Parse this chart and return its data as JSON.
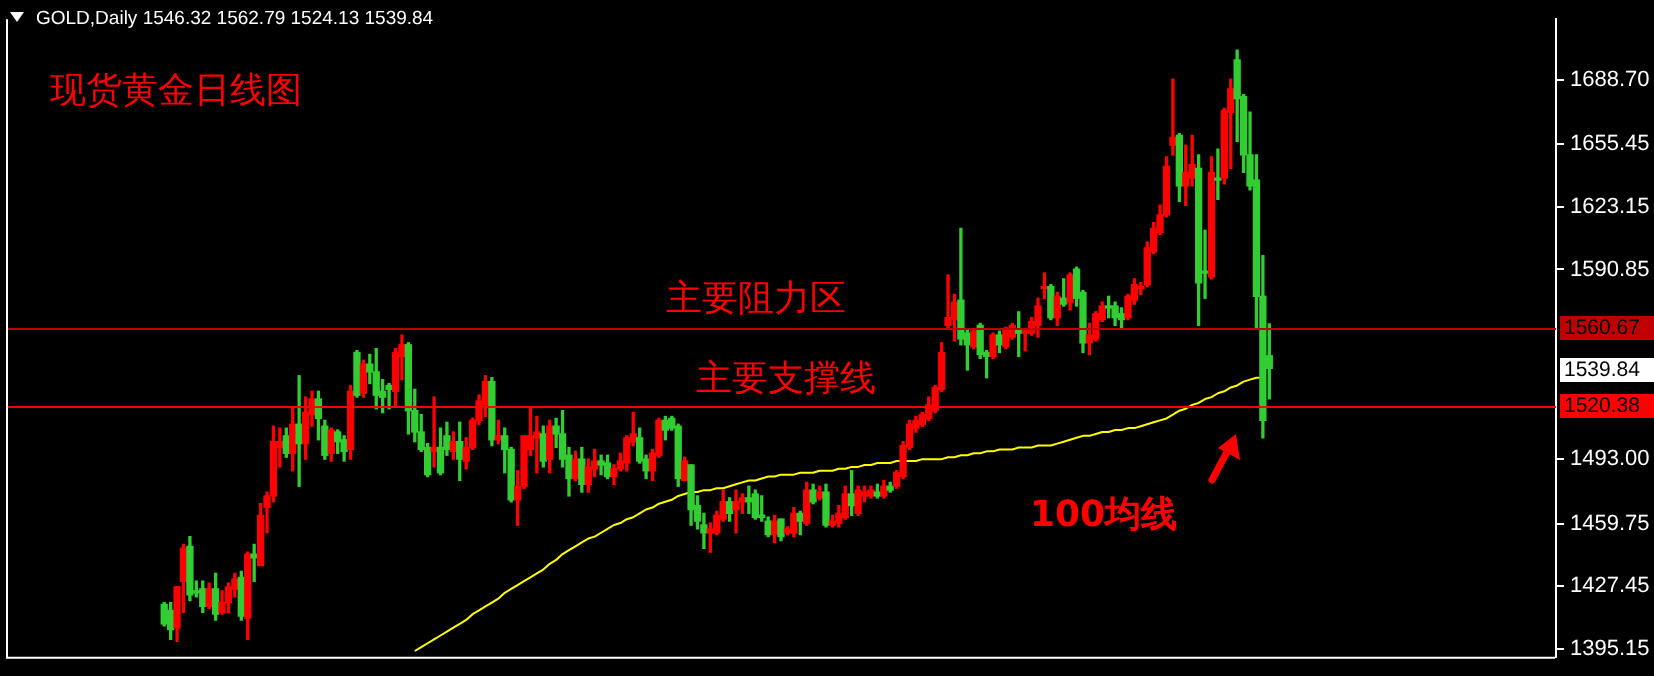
{
  "chart_data": {
    "type": "candlestick",
    "title": "现货黄金日线图",
    "categories": [
      null,
      null,
      null,
      null,
      null,
      null,
      null,
      null,
      null,
      null,
      null,
      null,
      null,
      null,
      null,
      null,
      null,
      null,
      null,
      null,
      null,
      null,
      null,
      null,
      null,
      null,
      null,
      null,
      null,
      null,
      null,
      null,
      null,
      null,
      null,
      null,
      null,
      null,
      null,
      null,
      null,
      null,
      null,
      null,
      null,
      null,
      null,
      null,
      null,
      null,
      null,
      null,
      null,
      null,
      null,
      null,
      null,
      null,
      null,
      null,
      null,
      null,
      null,
      null,
      null,
      null,
      null,
      null,
      null,
      null,
      null,
      null,
      null,
      null,
      null,
      null,
      null,
      null,
      null,
      null,
      null,
      null,
      null,
      null,
      null,
      null,
      null,
      null,
      null,
      null,
      null,
      null,
      null,
      null,
      null,
      null,
      null,
      null,
      null,
      null,
      null,
      null,
      null,
      null,
      null,
      null,
      null,
      null,
      null,
      null,
      null,
      null,
      null,
      null,
      null,
      null,
      null,
      null,
      null,
      null,
      null,
      null,
      null,
      null,
      null,
      null,
      null,
      null,
      null,
      null,
      null,
      null,
      null,
      null,
      null,
      null,
      null,
      null,
      null,
      null,
      null,
      null,
      null,
      null,
      null,
      null,
      null,
      null,
      null,
      null,
      null,
      null,
      null,
      null,
      null,
      null,
      null,
      null,
      null,
      null,
      null,
      null,
      null,
      null,
      null,
      null,
      null,
      null,
      null,
      null,
      null,
      null,
      null
    ],
    "ohlc": [
      [
        1418,
        1419,
        1407,
        1408
      ],
      [
        1415,
        1419,
        1400,
        1405
      ],
      [
        1406,
        1427,
        1399,
        1427
      ],
      [
        1430,
        1449,
        1414,
        1447
      ],
      [
        1448,
        1453,
        1420,
        1423
      ],
      [
        1425,
        1430,
        1422,
        1424
      ],
      [
        1426,
        1430,
        1414,
        1417
      ],
      [
        1417,
        1429,
        1416,
        1426
      ],
      [
        1426,
        1434,
        1410,
        1413
      ],
      [
        1414,
        1425,
        1413,
        1419
      ],
      [
        1419,
        1429,
        1414,
        1427
      ],
      [
        1426,
        1434,
        1422,
        1431
      ],
      [
        1432,
        1435,
        1410,
        1412
      ],
      [
        1411,
        1445,
        1400,
        1444
      ],
      [
        1444,
        1449,
        1430,
        1442
      ],
      [
        1438,
        1470,
        1438,
        1464
      ],
      [
        1468,
        1476,
        1455,
        1474
      ],
      [
        1474,
        1510,
        1471,
        1502
      ],
      [
        1499,
        1509,
        1489,
        1502
      ],
      [
        1505,
        1509,
        1494,
        1496
      ],
      [
        1496,
        1519,
        1487,
        1511
      ],
      [
        1511,
        1536,
        1479,
        1501
      ],
      [
        1501,
        1525,
        1493,
        1517
      ],
      [
        1516,
        1528,
        1510,
        1524
      ],
      [
        1524,
        1528,
        1503,
        1514
      ],
      [
        1510,
        1513,
        1493,
        1495
      ],
      [
        1496,
        1509,
        1492,
        1508
      ],
      [
        1507,
        1508,
        1496,
        1502
      ],
      [
        1503,
        1505,
        1492,
        1497
      ],
      [
        1498,
        1531,
        1493,
        1528
      ],
      [
        1548,
        1549,
        1525,
        1526
      ],
      [
        1527,
        1544,
        1525,
        1542
      ],
      [
        1542,
        1547,
        1532,
        1538
      ],
      [
        1538,
        1550,
        1519,
        1526
      ],
      [
        1528,
        1534,
        1517,
        1525
      ],
      [
        1531,
        1532,
        1519,
        1529
      ],
      [
        1528,
        1550,
        1520,
        1548
      ],
      [
        1546,
        1557,
        1534,
        1552
      ],
      [
        1552,
        1553,
        1506,
        1518
      ],
      [
        1518,
        1529,
        1502,
        1507
      ],
      [
        1507,
        1516,
        1497,
        1498
      ],
      [
        1499,
        1501,
        1484,
        1485
      ],
      [
        1497,
        1525,
        1489,
        1499
      ],
      [
        1499,
        1509,
        1485,
        1486
      ],
      [
        1505,
        1512,
        1495,
        1498
      ],
      [
        1497,
        1507,
        1493,
        1502
      ],
      [
        1502,
        1512,
        1482,
        1493
      ],
      [
        1492,
        1504,
        1488,
        1499
      ],
      [
        1499,
        1514,
        1498,
        1513
      ],
      [
        1513,
        1526,
        1511,
        1523
      ],
      [
        1521,
        1536,
        1515,
        1533
      ],
      [
        1533,
        1535,
        1500,
        1503
      ],
      [
        1503,
        1513,
        1501,
        1505
      ],
      [
        1505,
        1509,
        1486,
        1498
      ],
      [
        1498,
        1499,
        1471,
        1472
      ],
      [
        1472,
        1487,
        1459,
        1479
      ],
      [
        1479,
        1505,
        1478,
        1505
      ],
      [
        1498,
        1520,
        1495,
        1505
      ],
      [
        1504,
        1515,
        1486,
        1507
      ],
      [
        1506,
        1510,
        1489,
        1492
      ],
      [
        1493,
        1513,
        1486,
        1510
      ],
      [
        1510,
        1514,
        1499,
        1506
      ],
      [
        1506,
        1518,
        1489,
        1493
      ],
      [
        1495,
        1499,
        1474,
        1483
      ],
      [
        1483,
        1497,
        1482,
        1493
      ],
      [
        1493,
        1499,
        1476,
        1480
      ],
      [
        1480,
        1493,
        1476,
        1489
      ],
      [
        1488,
        1498,
        1484,
        1492
      ],
      [
        1492,
        1495,
        1485,
        1490
      ],
      [
        1491,
        1495,
        1483,
        1484
      ],
      [
        1484,
        1490,
        1480,
        1488
      ],
      [
        1488,
        1496,
        1487,
        1492
      ],
      [
        1491,
        1505,
        1487,
        1504
      ],
      [
        1502,
        1517,
        1500,
        1506
      ],
      [
        1504,
        1509,
        1491,
        1492
      ],
      [
        1493,
        1495,
        1483,
        1487
      ],
      [
        1487,
        1498,
        1482,
        1496
      ],
      [
        1495,
        1514,
        1494,
        1513
      ],
      [
        1513,
        1515,
        1503,
        1508
      ],
      [
        1514,
        1515,
        1508,
        1509
      ],
      [
        1510,
        1511,
        1479,
        1483
      ],
      [
        1482,
        1494,
        1482,
        1492
      ],
      [
        1490,
        1490,
        1459,
        1467
      ],
      [
        1469,
        1474,
        1457,
        1461
      ],
      [
        1459,
        1465,
        1447,
        1455
      ],
      [
        1455,
        1460,
        1445,
        1457
      ],
      [
        1455,
        1466,
        1454,
        1464
      ],
      [
        1462,
        1477,
        1461,
        1471
      ],
      [
        1471,
        1473,
        1461,
        1465
      ],
      [
        1467,
        1477,
        1455,
        1471
      ],
      [
        1471,
        1475,
        1465,
        1473
      ],
      [
        1473,
        1479,
        1465,
        1471
      ],
      [
        1475,
        1477,
        1462,
        1463
      ],
      [
        1464,
        1474,
        1461,
        1463
      ],
      [
        1461,
        1463,
        1453,
        1454
      ],
      [
        1454,
        1464,
        1450,
        1461
      ],
      [
        1462,
        1462,
        1451,
        1453
      ],
      [
        1455,
        1458,
        1454,
        1457
      ],
      [
        1455,
        1468,
        1453,
        1465
      ],
      [
        1465,
        1466,
        1454,
        1461
      ],
      [
        1460,
        1481,
        1459,
        1477
      ],
      [
        1477,
        1480,
        1470,
        1471
      ],
      [
        1473,
        1479,
        1472,
        1476
      ],
      [
        1476,
        1480,
        1458,
        1459
      ],
      [
        1459,
        1464,
        1458,
        1461
      ],
      [
        1460,
        1469,
        1458,
        1465
      ],
      [
        1463,
        1479,
        1462,
        1475
      ],
      [
        1475,
        1487,
        1464,
        1469
      ],
      [
        1465,
        1479,
        1464,
        1477
      ],
      [
        1474,
        1479,
        1471,
        1476
      ],
      [
        1474,
        1479,
        1473,
        1477
      ],
      [
        1476,
        1480,
        1473,
        1474
      ],
      [
        1474,
        1482,
        1473,
        1479
      ],
      [
        1479,
        1481,
        1476,
        1477
      ],
      [
        1479,
        1487,
        1478,
        1486
      ],
      [
        1484,
        1502,
        1483,
        1500
      ],
      [
        1499,
        1513,
        1498,
        1511
      ],
      [
        1509,
        1515,
        1507,
        1513
      ],
      [
        1511,
        1517,
        1510,
        1516
      ],
      [
        1514,
        1525,
        1513,
        1521
      ],
      [
        1518,
        1531,
        1517,
        1530
      ],
      [
        1529,
        1553,
        1528,
        1548
      ],
      [
        1562,
        1588,
        1561,
        1566
      ],
      [
        1565,
        1578,
        1554,
        1574
      ],
      [
        1575,
        1612,
        1552,
        1555
      ],
      [
        1558,
        1560,
        1539,
        1552
      ],
      [
        1551,
        1560,
        1550,
        1559
      ],
      [
        1562,
        1563,
        1545,
        1547
      ],
      [
        1548,
        1549,
        1535,
        1546
      ],
      [
        1546,
        1558,
        1545,
        1557
      ],
      [
        1557,
        1559,
        1548,
        1552
      ],
      [
        1551,
        1561,
        1550,
        1560
      ],
      [
        1556,
        1563,
        1555,
        1562
      ],
      [
        1560,
        1569,
        1546,
        1558
      ],
      [
        1558,
        1560,
        1549,
        1559
      ],
      [
        1558,
        1566,
        1557,
        1564
      ],
      [
        1562,
        1576,
        1556,
        1572
      ],
      [
        1581,
        1589,
        1576,
        1582
      ],
      [
        1582,
        1583,
        1565,
        1566
      ],
      [
        1566,
        1579,
        1562,
        1577
      ],
      [
        1576,
        1586,
        1572,
        1573
      ],
      [
        1574,
        1589,
        1570,
        1588
      ],
      [
        1591,
        1592,
        1572,
        1576
      ],
      [
        1579,
        1580,
        1548,
        1553
      ],
      [
        1553,
        1563,
        1547,
        1557
      ],
      [
        1555,
        1569,
        1554,
        1568
      ],
      [
        1565,
        1574,
        1564,
        1572
      ],
      [
        1572,
        1577,
        1566,
        1571
      ],
      [
        1572,
        1574,
        1562,
        1566
      ],
      [
        1568,
        1571,
        1561,
        1565
      ],
      [
        1566,
        1578,
        1565,
        1577
      ],
      [
        1575,
        1586,
        1573,
        1583
      ],
      [
        1581,
        1584,
        1578,
        1582
      ],
      [
        1583,
        1605,
        1582,
        1602
      ],
      [
        1600,
        1615,
        1599,
        1612
      ],
      [
        1610,
        1624,
        1609,
        1619
      ],
      [
        1619,
        1649,
        1618,
        1644
      ],
      [
        1655,
        1689,
        1650,
        1659
      ],
      [
        1660,
        1661,
        1626,
        1634
      ],
      [
        1634,
        1655,
        1624,
        1641
      ],
      [
        1638,
        1660,
        1634,
        1645
      ],
      [
        1643,
        1650,
        1562,
        1584
      ],
      [
        1590,
        1611,
        1576,
        1589
      ],
      [
        1587,
        1649,
        1586,
        1641
      ],
      [
        1638,
        1653,
        1627,
        1637
      ],
      [
        1638,
        1674,
        1635,
        1673
      ],
      [
        1672,
        1689,
        1643,
        1684
      ],
      [
        1699,
        1704,
        1657,
        1679
      ],
      [
        1680,
        1681,
        1641,
        1650
      ],
      [
        1650,
        1672,
        1632,
        1634
      ],
      [
        1637,
        1650,
        1561,
        1577
      ],
      [
        1577,
        1598,
        1504,
        1513
      ],
      [
        1546.32,
        1562.79,
        1524.13,
        1539.84
      ]
    ],
    "series": [
      {
        "type": "line",
        "color": "#ffff00",
        "values": [
          null,
          null,
          null,
          null,
          null,
          null,
          null,
          null,
          null,
          null,
          null,
          null,
          null,
          null,
          null,
          null,
          null,
          null,
          null,
          null,
          null,
          null,
          null,
          null,
          null,
          null,
          null,
          null,
          null,
          null,
          null,
          null,
          null,
          null,
          null,
          null,
          null,
          null,
          null,
          1394,
          1396,
          1398,
          1400,
          1402,
          1404,
          1406,
          1408,
          1410,
          1413,
          1415,
          1417,
          1419,
          1421,
          1424,
          1426,
          1428,
          1430,
          1432,
          1434,
          1436,
          1439,
          1441,
          1444,
          1446,
          1448,
          1450,
          1452,
          1453,
          1455,
          1457,
          1459,
          1460,
          1462,
          1463,
          1465,
          1467,
          1468,
          1470,
          1471,
          1472,
          1474,
          1475,
          1476,
          1476,
          1477,
          1477,
          1478,
          1478,
          1479,
          1480,
          1481,
          1482,
          1482,
          1483,
          1484,
          1484,
          1485,
          1485,
          1485,
          1486,
          1486,
          1486,
          1487,
          1487,
          1487,
          1488,
          1488,
          1489,
          1489,
          1490,
          1490,
          1491,
          1491,
          1491,
          1492,
          1492,
          1492,
          1492,
          1493,
          1493,
          1493,
          1493,
          1494,
          1494,
          1495,
          1495,
          1496,
          1496,
          1497,
          1497,
          1498,
          1498,
          1498,
          1499,
          1499,
          1499,
          1500,
          1500,
          1500,
          1501,
          1502,
          1503,
          1504,
          1505,
          1505,
          1506,
          1507,
          1507,
          1508,
          1508,
          1509,
          1509,
          1510,
          1511,
          1512,
          1513,
          1514,
          1516,
          1518,
          1519,
          1521,
          1522,
          1524,
          1525,
          1527,
          1528,
          1530,
          1531,
          1533,
          1534,
          1535,
          1535,
          null
        ]
      }
    ],
    "ylim": [
      1391,
      1720
    ],
    "yticks": [
      {
        "value": 1395.15,
        "label": "1395.15"
      },
      {
        "value": 1427.45,
        "label": "1427.45"
      },
      {
        "value": 1459.75,
        "label": "1459.75"
      },
      {
        "value": 1493,
        "label": "1493.00"
      },
      {
        "value": 1590.85,
        "label": "1590.85"
      },
      {
        "value": 1623.15,
        "label": "1623.15"
      },
      {
        "value": 1655.45,
        "label": "1655.45"
      },
      {
        "value": 1688.7,
        "label": "1688.70"
      }
    ],
    "grid": false,
    "ref_lines": [
      {
        "axis": "y",
        "value": 1560.67,
        "label": "1560.67",
        "color": "#c00000"
      },
      {
        "axis": "y",
        "value": 1520.38,
        "label": "1520.38",
        "color": "#ff0000"
      }
    ],
    "annotations": [
      "GOLD,Daily 1546.32 1562.79 1524.13 1539.84",
      "1539.84",
      "主要阻力区",
      "主要支撑线",
      "100均线"
    ]
  }
}
